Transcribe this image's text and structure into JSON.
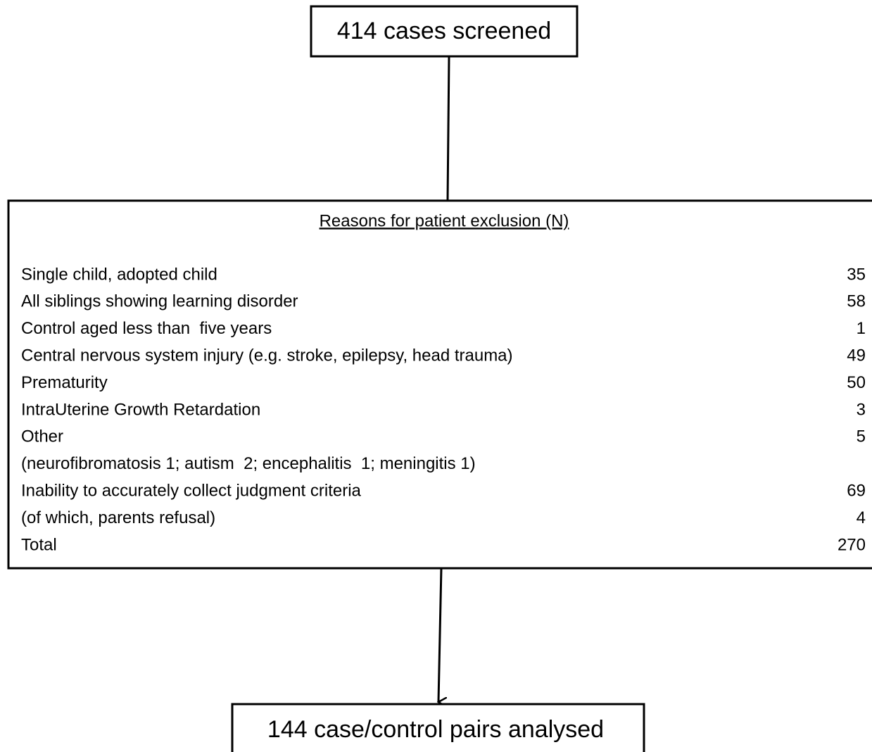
{
  "top": {
    "label": "414 cases screened"
  },
  "exclusion": {
    "title": "Reasons for patient exclusion (N)",
    "rows": [
      {
        "label": "Single child, adopted child",
        "count": 35
      },
      {
        "label": "All siblings showing learning disorder",
        "count": 58
      },
      {
        "label": "Control aged less than  five years",
        "count": 1
      },
      {
        "label": "Central nervous system injury (e.g. stroke, epilepsy, head trauma)",
        "count": 49
      },
      {
        "label": "Prematurity",
        "count": 50
      },
      {
        "label": "IntraUterine Growth Retardation",
        "count": 3
      },
      {
        "label": "Other",
        "count": 5
      },
      {
        "label": "(neurofibromatosis 1; autism  2; encephalitis  1; meningitis 1)"
      },
      {
        "label": "Inability to accurately collect judgment criteria",
        "count": 69
      },
      {
        "label": "(of which, parents refusal)",
        "count": 4
      },
      {
        "label": "Total",
        "count": 270
      }
    ]
  },
  "bottom": {
    "label": "144 case/control pairs analysed"
  }
}
